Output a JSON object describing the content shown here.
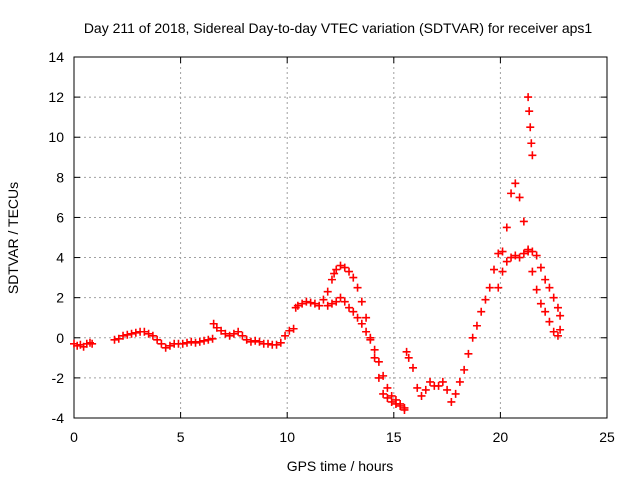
{
  "chart_data": {
    "type": "scatter",
    "title": "Day 211 of 2018, Sidereal Day-to-day VTEC variation (SDTVAR) for receiver aps1",
    "xlabel": "GPS time / hours",
    "ylabel": "SDTVAR / TECUs",
    "xlim": [
      0,
      25
    ],
    "ylim": [
      -4,
      14
    ],
    "xticks": [
      0,
      5,
      10,
      15,
      20,
      25
    ],
    "yticks": [
      -4,
      -2,
      0,
      2,
      4,
      6,
      8,
      10,
      12,
      14
    ],
    "grid": true,
    "marker": "+",
    "color": "#ff0000",
    "series": [
      {
        "name": "SDTVAR",
        "x": [
          0.0,
          0.15,
          0.3,
          0.45,
          0.6,
          0.75,
          0.85,
          1.9,
          2.1,
          2.3,
          2.5,
          2.7,
          2.9,
          3.1,
          3.3,
          3.5,
          3.7,
          3.9,
          4.1,
          4.3,
          4.5,
          4.7,
          4.9,
          5.1,
          5.3,
          5.5,
          5.7,
          5.9,
          6.1,
          6.3,
          6.5,
          6.55,
          6.7,
          6.9,
          7.1,
          7.3,
          7.5,
          7.7,
          7.9,
          8.1,
          8.3,
          8.5,
          8.7,
          8.9,
          9.1,
          9.3,
          9.5,
          9.7,
          9.9,
          10.1,
          10.3,
          10.4,
          10.5,
          10.7,
          10.9,
          11.1,
          11.3,
          11.5,
          11.7,
          11.9,
          12.1,
          12.2,
          12.3,
          12.5,
          12.7,
          12.9,
          13.1,
          13.3,
          13.5,
          13.7,
          13.9,
          14.1,
          14.3,
          14.5,
          14.7,
          14.9,
          15.1,
          15.3,
          15.5,
          15.6,
          15.7,
          15.9,
          16.1,
          16.3,
          16.5,
          16.7,
          16.9,
          17.1,
          17.3,
          17.5,
          17.7,
          17.9,
          18.1,
          18.3,
          18.5,
          18.7,
          18.9,
          19.1,
          19.3,
          19.5,
          19.7,
          19.9,
          20.1,
          20.3,
          20.5,
          20.7,
          20.9,
          21.1,
          21.3,
          21.5,
          21.7,
          21.9,
          22.1,
          22.3,
          22.5,
          22.7,
          22.8,
          11.9,
          12.1,
          12.3,
          12.5,
          12.7,
          12.9,
          13.1,
          13.3,
          13.5,
          13.7,
          13.9,
          14.1,
          14.3,
          14.5,
          14.7,
          14.9,
          15.1,
          15.3,
          15.5,
          19.9,
          20.1,
          20.3,
          20.5,
          20.7,
          20.9,
          21.1,
          21.3,
          21.5,
          21.7,
          21.9,
          22.1,
          22.3,
          22.5,
          22.7,
          22.8,
          21.3,
          21.35,
          21.4,
          21.45,
          21.5
        ],
        "y": [
          -0.3,
          -0.4,
          -0.35,
          -0.45,
          -0.3,
          -0.25,
          -0.3,
          -0.1,
          -0.05,
          0.1,
          0.15,
          0.2,
          0.25,
          0.3,
          0.3,
          0.2,
          0.1,
          -0.1,
          -0.3,
          -0.5,
          -0.4,
          -0.3,
          -0.3,
          -0.3,
          -0.25,
          -0.2,
          -0.25,
          -0.2,
          -0.15,
          -0.1,
          -0.05,
          0.7,
          0.5,
          0.35,
          0.2,
          0.1,
          0.2,
          0.3,
          0.1,
          -0.1,
          -0.2,
          -0.15,
          -0.2,
          -0.3,
          -0.3,
          -0.35,
          -0.35,
          -0.25,
          0.1,
          0.35,
          0.45,
          1.5,
          1.6,
          1.7,
          1.8,
          1.75,
          1.7,
          1.6,
          1.9,
          2.3,
          2.9,
          3.2,
          3.4,
          3.6,
          3.5,
          3.3,
          3.0,
          2.5,
          1.8,
          1.0,
          0.0,
          -1.0,
          -2.0,
          -2.8,
          -3.0,
          -3.2,
          -3.3,
          -3.4,
          -3.5,
          -0.7,
          -1.0,
          -1.5,
          -2.5,
          -2.9,
          -2.6,
          -2.2,
          -2.4,
          -2.4,
          -2.2,
          -2.6,
          -3.2,
          -2.8,
          -2.2,
          -1.6,
          -0.8,
          0.0,
          0.6,
          1.3,
          1.9,
          2.5,
          3.4,
          4.2,
          4.3,
          5.5,
          7.2,
          7.7,
          7.0,
          5.8,
          4.4,
          3.3,
          2.4,
          1.7,
          1.3,
          0.8,
          0.3,
          0.1,
          0.4,
          1.6,
          1.7,
          1.8,
          2.0,
          1.8,
          1.5,
          1.3,
          1.0,
          0.7,
          0.3,
          -0.1,
          -0.6,
          -1.2,
          -1.9,
          -2.5,
          -2.9,
          -3.1,
          -3.3,
          -3.6,
          2.5,
          3.3,
          3.8,
          4.0,
          4.1,
          4.0,
          4.2,
          4.3,
          4.3,
          4.1,
          3.5,
          2.9,
          2.5,
          2.0,
          1.5,
          1.1,
          12.0,
          11.3,
          10.5,
          9.7,
          9.1
        ]
      }
    ]
  }
}
